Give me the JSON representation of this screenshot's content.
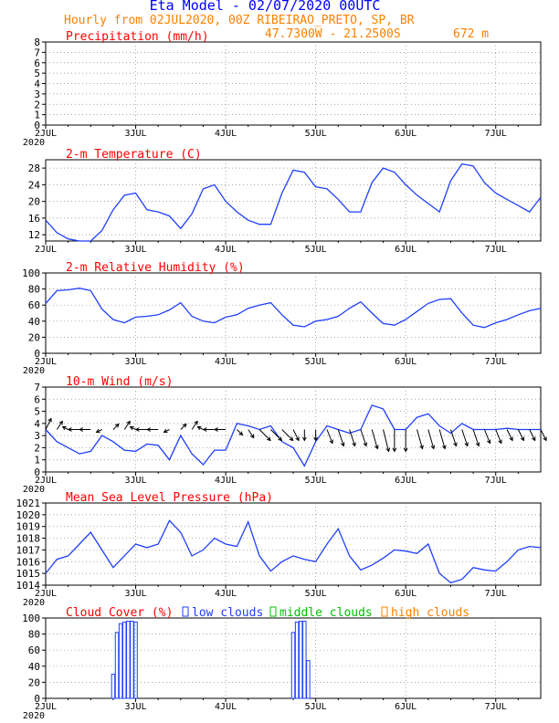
{
  "header": {
    "title": "Eta Model - 02/07/2020 00UTC",
    "line2": "Hourly from 02JUL2020, 00Z  RIBEIRAO_PRETO, SP, BR",
    "coords": "47.7300W - 21.2500S",
    "elevation": "672  m"
  },
  "colors": {
    "title": "#0000ff",
    "orange": "#ff8000",
    "red": "#ff0000",
    "line": "#1f3fff",
    "green": "#00c000"
  },
  "time_axis": {
    "tick_labels": [
      "2JUL",
      "3JUL",
      "4JUL",
      "5JUL",
      "6JUL",
      "7JUL"
    ],
    "year_label": "2020",
    "x_range_hours": [
      0,
      132
    ]
  },
  "chart_data": [
    {
      "id": "precip",
      "type": "line",
      "title": "Precipitation (mm/h)",
      "ylim": [
        0,
        8
      ],
      "yticks": [
        0,
        1,
        2,
        3,
        4,
        5,
        6,
        7,
        8
      ],
      "x": [],
      "values": []
    },
    {
      "id": "temp",
      "type": "line",
      "title": "2-m Temperature (C)",
      "ylim": [
        10.5,
        30
      ],
      "yticks": [
        12,
        16,
        20,
        24,
        28
      ],
      "x": [
        0,
        3,
        6,
        9,
        12,
        15,
        18,
        21,
        24,
        27,
        30,
        33,
        36,
        39,
        42,
        45,
        48,
        51,
        54,
        57,
        60,
        63,
        66,
        69,
        72,
        75,
        78,
        81,
        84,
        87,
        90,
        93,
        96,
        99,
        102,
        105,
        108,
        111,
        114,
        117,
        120,
        123,
        126,
        129,
        132
      ],
      "values": [
        15.5,
        12.5,
        11,
        10,
        10.2,
        13,
        18,
        21.5,
        22,
        18,
        17.5,
        16.5,
        13.5,
        17,
        23,
        24,
        20,
        17.5,
        15.5,
        14.5,
        14.5,
        22,
        27.5,
        27,
        23.5,
        23,
        20.5,
        17.5,
        17.5,
        24.5,
        28,
        27,
        24,
        21.5,
        19.5,
        17.5,
        25,
        29,
        28.5,
        24.5,
        22,
        20.5,
        19,
        17.5,
        21
      ]
    },
    {
      "id": "rh",
      "type": "line",
      "title": "2-m Relative Humidity (%)",
      "ylim": [
        0,
        100
      ],
      "yticks": [
        0,
        20,
        40,
        60,
        80,
        100
      ],
      "x": [
        0,
        3,
        6,
        9,
        12,
        15,
        18,
        21,
        24,
        27,
        30,
        33,
        36,
        39,
        42,
        45,
        48,
        51,
        54,
        57,
        60,
        63,
        66,
        69,
        72,
        75,
        78,
        81,
        84,
        87,
        90,
        93,
        96,
        99,
        102,
        105,
        108,
        111,
        114,
        117,
        120,
        123,
        126,
        129,
        132
      ],
      "values": [
        62,
        78,
        79,
        81,
        78,
        55,
        42,
        38,
        45,
        46,
        48,
        54,
        63,
        46,
        40,
        38,
        45,
        48,
        56,
        60,
        63,
        48,
        35,
        33,
        40,
        42,
        46,
        56,
        64,
        50,
        37,
        35,
        42,
        52,
        62,
        67,
        68,
        50,
        35,
        32,
        38,
        42,
        48,
        53,
        56
      ]
    },
    {
      "id": "wind",
      "type": "line",
      "title": "10-m Wind (m/s)",
      "ylim": [
        0,
        7
      ],
      "yticks": [
        0,
        1,
        2,
        3,
        4,
        5,
        6,
        7
      ],
      "x": [
        0,
        3,
        6,
        9,
        12,
        15,
        18,
        21,
        24,
        27,
        30,
        33,
        36,
        39,
        42,
        45,
        48,
        51,
        54,
        57,
        60,
        63,
        66,
        69,
        72,
        75,
        78,
        81,
        84,
        87,
        90,
        93,
        96,
        99,
        102,
        105,
        108,
        111,
        114,
        117,
        120,
        123,
        126,
        129,
        132
      ],
      "values": [
        3.5,
        2.5,
        2,
        1.5,
        1.7,
        3,
        2.5,
        1.8,
        1.7,
        2.3,
        2.2,
        1,
        3,
        1.5,
        0.6,
        1.8,
        1.8,
        4,
        3.8,
        3.5,
        3.8,
        2.5,
        2,
        0.5,
        2.5,
        3.8,
        3.5,
        3.2,
        3.5,
        5.5,
        5.2,
        3.5,
        3.5,
        4.5,
        4.8,
        3.8,
        3.2,
        4,
        3.5,
        3.5,
        3.5,
        3.6,
        3.5,
        3.5,
        3.5
      ],
      "arrows_u": [
        1,
        1,
        -1,
        -2,
        -2,
        -1,
        1,
        1,
        -1,
        -2,
        -2,
        -1,
        1,
        1,
        -1,
        -2,
        -2,
        1,
        1,
        2,
        2,
        2,
        1,
        0,
        0,
        1,
        1,
        1,
        1,
        1,
        1,
        0,
        0,
        1,
        1,
        1,
        1,
        1,
        1,
        1,
        1,
        1,
        1,
        1,
        1
      ],
      "arrows_v": [
        2,
        1.5,
        0.5,
        0,
        0,
        -0.5,
        1,
        1.5,
        0.5,
        0,
        0,
        -0.5,
        1,
        1.5,
        0.5,
        0,
        0,
        -1,
        -1.5,
        -2,
        -2,
        -2,
        -2,
        -2,
        -2,
        -2.5,
        -3,
        -3,
        -3,
        -3.5,
        -4,
        -4,
        -4,
        -3.5,
        -3.5,
        -3.5,
        -3,
        -3,
        -3,
        -2.5,
        -2.5,
        -2,
        -2,
        -2,
        -2
      ]
    },
    {
      "id": "mslp",
      "type": "line",
      "title": "Mean Sea Level Pressure (hPa)",
      "ylim": [
        1014,
        1021
      ],
      "yticks": [
        1014,
        1015,
        1016,
        1017,
        1018,
        1019,
        1020,
        1021
      ],
      "x": [
        0,
        3,
        6,
        9,
        12,
        15,
        18,
        21,
        24,
        27,
        30,
        33,
        36,
        39,
        42,
        45,
        48,
        51,
        54,
        57,
        60,
        63,
        66,
        69,
        72,
        75,
        78,
        81,
        84,
        87,
        90,
        93,
        96,
        99,
        102,
        105,
        108,
        111,
        114,
        117,
        120,
        123,
        126,
        129,
        132
      ],
      "values": [
        1015,
        1016.2,
        1016.5,
        1017.5,
        1018.5,
        1017,
        1015.5,
        1016.5,
        1017.5,
        1017.2,
        1017.5,
        1019.5,
        1018.5,
        1016.5,
        1017,
        1018,
        1017.5,
        1017.3,
        1019.4,
        1016.5,
        1015.2,
        1016,
        1016.5,
        1016.2,
        1016,
        1017.5,
        1018.8,
        1016.5,
        1015.3,
        1015.7,
        1016.3,
        1017,
        1016.9,
        1016.7,
        1017.5,
        1015,
        1014.2,
        1014.5,
        1015.5,
        1015.3,
        1015.2,
        1016,
        1017,
        1017.3,
        1017.2
      ]
    },
    {
      "id": "cloud",
      "type": "bar",
      "title": "Cloud Cover (%)",
      "legend": [
        "low clouds",
        "middle clouds",
        "high clouds"
      ],
      "ylim": [
        0,
        100
      ],
      "yticks": [
        0,
        20,
        40,
        60,
        80,
        100
      ],
      "x": [
        18,
        19,
        20,
        21,
        22,
        23,
        24,
        66,
        67,
        68,
        69,
        70
      ],
      "values": [
        30,
        82,
        93,
        95,
        96,
        96,
        95,
        82,
        95,
        96,
        96,
        47
      ],
      "series": "low clouds"
    }
  ]
}
